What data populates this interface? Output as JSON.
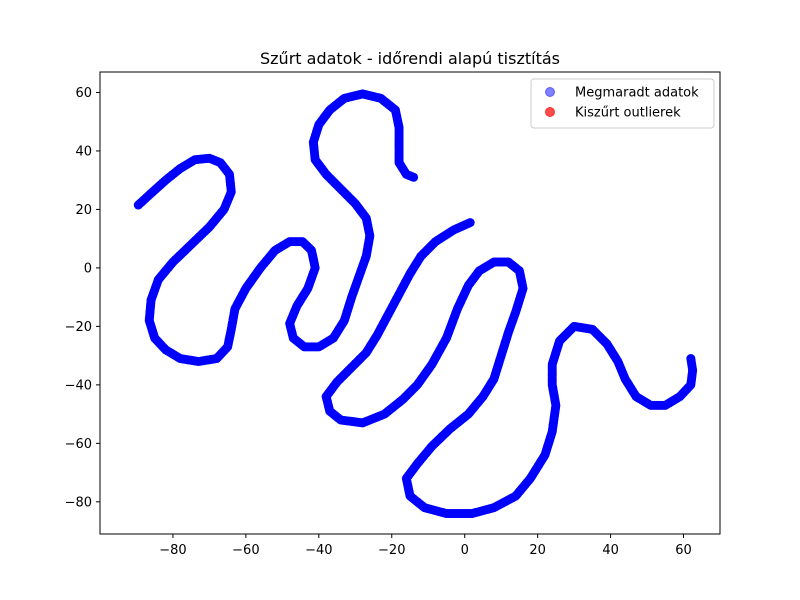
{
  "chart_data": {
    "type": "scatter",
    "title": "Szűrt adatok - időrendi alapú tisztítás",
    "xlabel": "",
    "ylabel": "",
    "xlim": [
      -100,
      70
    ],
    "ylim": [
      -91,
      67
    ],
    "xticks": [
      -80,
      -60,
      -40,
      -20,
      0,
      20,
      40,
      60
    ],
    "yticks": [
      -80,
      -60,
      -40,
      -20,
      0,
      20,
      40,
      60
    ],
    "grid": false,
    "legend_position": "top-right",
    "series": [
      {
        "name": "Megmaradt adatok",
        "color": "#0000ff",
        "legend_alpha": 0.5,
        "path_points": [
          [
            -89.5,
            21.5
          ],
          [
            -86,
            25.5
          ],
          [
            -82,
            30
          ],
          [
            -78,
            34
          ],
          [
            -74,
            37
          ],
          [
            -70,
            37.5
          ],
          [
            -67,
            36
          ],
          [
            -64.5,
            32
          ],
          [
            -64,
            26
          ],
          [
            -66,
            20
          ],
          [
            -70,
            14
          ],
          [
            -75,
            8
          ],
          [
            -80,
            2
          ],
          [
            -84,
            -4
          ],
          [
            -86,
            -11
          ],
          [
            -86.5,
            -18
          ],
          [
            -85,
            -24
          ],
          [
            -82,
            -28
          ],
          [
            -78,
            -31
          ],
          [
            -73,
            -32
          ],
          [
            -68,
            -31
          ],
          [
            -65,
            -27
          ],
          [
            -64,
            -21
          ],
          [
            -63,
            -14
          ],
          [
            -60,
            -7
          ],
          [
            -56,
            0
          ],
          [
            -52,
            6
          ],
          [
            -48,
            9
          ],
          [
            -44.5,
            9
          ],
          [
            -42,
            6
          ],
          [
            -41,
            0
          ],
          [
            -43,
            -7
          ],
          [
            -46,
            -13
          ],
          [
            -48,
            -19
          ],
          [
            -47,
            -24
          ],
          [
            -44,
            -27
          ],
          [
            -40,
            -27
          ],
          [
            -36,
            -24
          ],
          [
            -33,
            -18
          ],
          [
            -31,
            -10
          ],
          [
            -29,
            -3
          ],
          [
            -27,
            4
          ],
          [
            -26,
            11
          ],
          [
            -27,
            17
          ],
          [
            -30,
            22
          ],
          [
            -34,
            27
          ],
          [
            -38,
            32
          ],
          [
            -41,
            37
          ],
          [
            -41.5,
            43
          ],
          [
            -40,
            49
          ],
          [
            -37,
            54
          ],
          [
            -33,
            58
          ],
          [
            -28,
            59.5
          ],
          [
            -23,
            58
          ],
          [
            -19,
            54
          ],
          [
            -18,
            48
          ],
          [
            -18,
            42
          ],
          [
            -18,
            36
          ],
          [
            -16,
            32
          ],
          [
            -14,
            31
          ]
        ]
      },
      {
        "name": "Megmaradt adatok",
        "color": "#0000ff",
        "path_points": [
          [
            1.5,
            15.5
          ],
          [
            -3,
            13
          ],
          [
            -8,
            9
          ],
          [
            -12,
            4
          ],
          [
            -15,
            -2
          ],
          [
            -18,
            -9
          ],
          [
            -21,
            -16
          ],
          [
            -24,
            -23
          ],
          [
            -27,
            -29
          ],
          [
            -31,
            -34
          ],
          [
            -35,
            -39
          ],
          [
            -38,
            -44
          ],
          [
            -37,
            -49
          ],
          [
            -34,
            -52
          ],
          [
            -28,
            -53
          ],
          [
            -22,
            -50
          ],
          [
            -17,
            -45
          ],
          [
            -13,
            -40
          ],
          [
            -9,
            -33
          ],
          [
            -5,
            -24
          ],
          [
            -2,
            -14
          ],
          [
            1,
            -6
          ],
          [
            4,
            -1
          ],
          [
            8,
            2
          ],
          [
            12,
            2
          ],
          [
            15,
            -1
          ],
          [
            16,
            -7
          ],
          [
            14,
            -15
          ],
          [
            12,
            -22
          ],
          [
            10,
            -30
          ],
          [
            8,
            -38
          ],
          [
            5,
            -44
          ],
          [
            1,
            -50
          ],
          [
            -4,
            -55
          ],
          [
            -9,
            -61
          ],
          [
            -13,
            -67
          ],
          [
            -16,
            -72
          ],
          [
            -15,
            -78
          ],
          [
            -11,
            -82
          ],
          [
            -5,
            -84
          ],
          [
            2,
            -84
          ],
          [
            8,
            -82
          ],
          [
            14,
            -78
          ],
          [
            18,
            -72
          ],
          [
            22,
            -64
          ],
          [
            24,
            -56
          ],
          [
            25,
            -47
          ],
          [
            24,
            -40
          ],
          [
            24,
            -33
          ],
          [
            26,
            -25
          ],
          [
            30,
            -20
          ],
          [
            35,
            -21
          ],
          [
            39,
            -26
          ],
          [
            42,
            -32
          ],
          [
            44,
            -38
          ],
          [
            47,
            -44
          ],
          [
            51,
            -47
          ],
          [
            55,
            -47
          ],
          [
            59,
            -44
          ],
          [
            62,
            -40
          ],
          [
            62.5,
            -35
          ],
          [
            62,
            -31
          ]
        ]
      },
      {
        "name": "Kiszűrt outlierek",
        "color": "#ff0000",
        "legend_alpha": 0.7,
        "path_points": []
      }
    ]
  }
}
